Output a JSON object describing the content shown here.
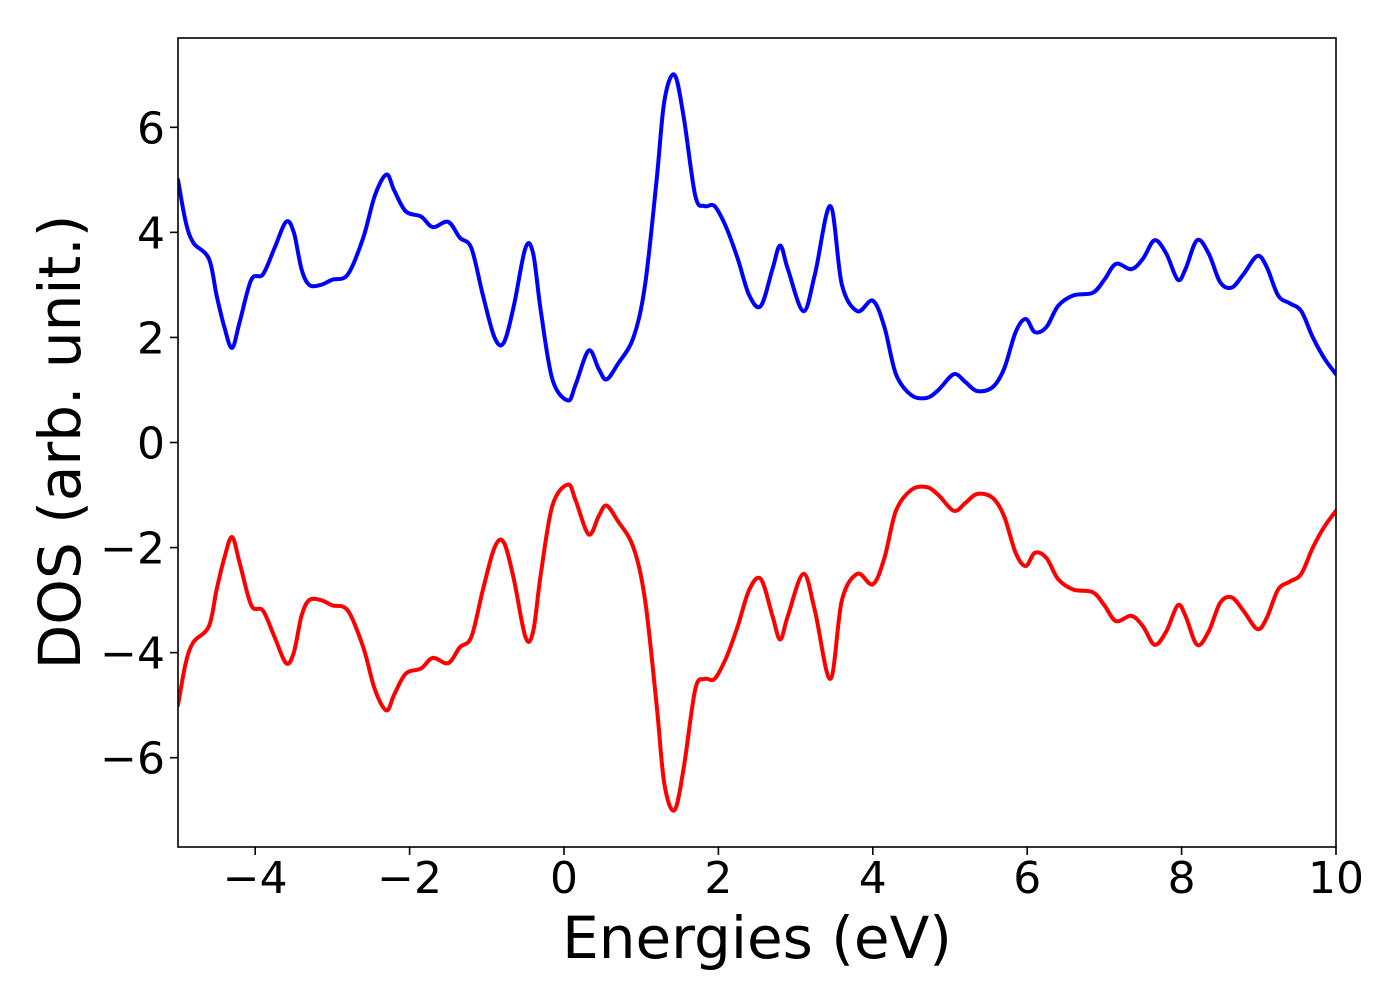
{
  "chart_data": {
    "type": "line",
    "title": "",
    "xlabel": "Energies (eV)",
    "ylabel": "DOS (arb. unit.)",
    "xlim": [
      -5,
      10
    ],
    "ylim": [
      -7.7,
      7.7
    ],
    "xticks": [
      -4,
      -2,
      0,
      2,
      4,
      6,
      8,
      10
    ],
    "xtick_labels": [
      "−4",
      "−2",
      "0",
      "2",
      "4",
      "6",
      "8",
      "10"
    ],
    "yticks": [
      -6,
      -4,
      -2,
      0,
      2,
      4,
      6
    ],
    "ytick_labels": [
      "−6",
      "−4",
      "−2",
      "0",
      "2",
      "4",
      "6"
    ],
    "grid": false,
    "legend": "none",
    "series": [
      {
        "color": "#0000ff",
        "x": [
          -5.0,
          -4.9,
          -4.8,
          -4.6,
          -4.5,
          -4.4,
          -4.3,
          -4.2,
          -4.05,
          -3.9,
          -3.75,
          -3.6,
          -3.5,
          -3.4,
          -3.3,
          -3.15,
          -3.0,
          -2.8,
          -2.6,
          -2.45,
          -2.3,
          -2.2,
          -2.05,
          -1.85,
          -1.7,
          -1.5,
          -1.35,
          -1.2,
          -1.05,
          -0.9,
          -0.78,
          -0.65,
          -0.5,
          -0.4,
          -0.3,
          -0.15,
          0.05,
          0.15,
          0.32,
          0.45,
          0.55,
          0.7,
          0.9,
          1.05,
          1.2,
          1.3,
          1.43,
          1.55,
          1.7,
          1.82,
          1.95,
          2.1,
          2.25,
          2.4,
          2.55,
          2.7,
          2.8,
          2.9,
          3.1,
          3.25,
          3.45,
          3.6,
          3.8,
          4.0,
          4.15,
          4.3,
          4.5,
          4.7,
          4.85,
          5.05,
          5.2,
          5.35,
          5.55,
          5.7,
          5.85,
          5.98,
          6.1,
          6.25,
          6.4,
          6.6,
          6.85,
          7.0,
          7.15,
          7.35,
          7.5,
          7.65,
          7.8,
          7.95,
          8.05,
          8.2,
          8.35,
          8.5,
          8.65,
          8.8,
          8.98,
          9.1,
          9.25,
          9.4,
          9.55,
          9.7,
          9.85,
          10.0
        ],
        "y": [
          5.0,
          4.2,
          3.8,
          3.5,
          2.8,
          2.2,
          1.8,
          2.3,
          3.1,
          3.2,
          3.7,
          4.2,
          4.0,
          3.3,
          3.0,
          3.0,
          3.1,
          3.2,
          3.9,
          4.7,
          5.1,
          4.8,
          4.4,
          4.3,
          4.1,
          4.2,
          3.9,
          3.7,
          2.8,
          2.0,
          1.9,
          2.6,
          3.7,
          3.6,
          2.5,
          1.2,
          0.8,
          1.1,
          1.75,
          1.4,
          1.2,
          1.5,
          2.0,
          3.0,
          5.0,
          6.5,
          7.0,
          6.2,
          4.7,
          4.5,
          4.5,
          4.1,
          3.5,
          2.8,
          2.6,
          3.3,
          3.75,
          3.3,
          2.5,
          3.2,
          4.5,
          3.0,
          2.5,
          2.7,
          2.2,
          1.3,
          0.9,
          0.85,
          1.0,
          1.3,
          1.15,
          0.98,
          1.05,
          1.4,
          2.1,
          2.35,
          2.1,
          2.2,
          2.6,
          2.8,
          2.85,
          3.1,
          3.4,
          3.3,
          3.5,
          3.85,
          3.6,
          3.1,
          3.3,
          3.85,
          3.6,
          3.05,
          2.95,
          3.2,
          3.55,
          3.35,
          2.8,
          2.65,
          2.5,
          2.0,
          1.6,
          1.3
        ]
      },
      {
        "color": "#ff0000",
        "x": [
          -5.0,
          -4.9,
          -4.8,
          -4.6,
          -4.5,
          -4.4,
          -4.3,
          -4.2,
          -4.05,
          -3.9,
          -3.75,
          -3.6,
          -3.5,
          -3.4,
          -3.3,
          -3.15,
          -3.0,
          -2.8,
          -2.6,
          -2.45,
          -2.3,
          -2.2,
          -2.05,
          -1.85,
          -1.7,
          -1.5,
          -1.35,
          -1.2,
          -1.05,
          -0.9,
          -0.78,
          -0.65,
          -0.5,
          -0.4,
          -0.3,
          -0.15,
          0.05,
          0.15,
          0.32,
          0.45,
          0.55,
          0.7,
          0.9,
          1.05,
          1.2,
          1.3,
          1.43,
          1.55,
          1.7,
          1.82,
          1.95,
          2.1,
          2.25,
          2.4,
          2.55,
          2.7,
          2.8,
          2.9,
          3.1,
          3.25,
          3.45,
          3.6,
          3.8,
          4.0,
          4.15,
          4.3,
          4.5,
          4.7,
          4.85,
          5.05,
          5.2,
          5.35,
          5.55,
          5.7,
          5.85,
          5.98,
          6.1,
          6.25,
          6.4,
          6.6,
          6.85,
          7.0,
          7.15,
          7.35,
          7.5,
          7.65,
          7.8,
          7.95,
          8.05,
          8.2,
          8.35,
          8.5,
          8.65,
          8.8,
          8.98,
          9.1,
          9.25,
          9.4,
          9.55,
          9.7,
          9.85,
          10.0
        ],
        "y": [
          -5.0,
          -4.2,
          -3.8,
          -3.5,
          -2.8,
          -2.2,
          -1.8,
          -2.3,
          -3.1,
          -3.2,
          -3.7,
          -4.2,
          -4.0,
          -3.3,
          -3.0,
          -3.0,
          -3.1,
          -3.2,
          -3.9,
          -4.7,
          -5.1,
          -4.8,
          -4.4,
          -4.3,
          -4.1,
          -4.2,
          -3.9,
          -3.7,
          -2.8,
          -2.0,
          -1.9,
          -2.6,
          -3.7,
          -3.6,
          -2.5,
          -1.2,
          -0.8,
          -1.1,
          -1.75,
          -1.4,
          -1.2,
          -1.5,
          -2.0,
          -3.0,
          -5.0,
          -6.5,
          -7.0,
          -6.2,
          -4.7,
          -4.5,
          -4.5,
          -4.1,
          -3.5,
          -2.8,
          -2.6,
          -3.3,
          -3.75,
          -3.3,
          -2.5,
          -3.2,
          -4.5,
          -3.0,
          -2.5,
          -2.7,
          -2.2,
          -1.3,
          -0.9,
          -0.85,
          -1.0,
          -1.3,
          -1.15,
          -0.98,
          -1.05,
          -1.4,
          -2.1,
          -2.35,
          -2.1,
          -2.2,
          -2.6,
          -2.8,
          -2.85,
          -3.1,
          -3.4,
          -3.3,
          -3.5,
          -3.85,
          -3.6,
          -3.1,
          -3.3,
          -3.85,
          -3.6,
          -3.05,
          -2.95,
          -3.2,
          -3.55,
          -3.35,
          -2.8,
          -2.65,
          -2.5,
          -2.0,
          -1.6,
          -1.3
        ]
      }
    ]
  }
}
